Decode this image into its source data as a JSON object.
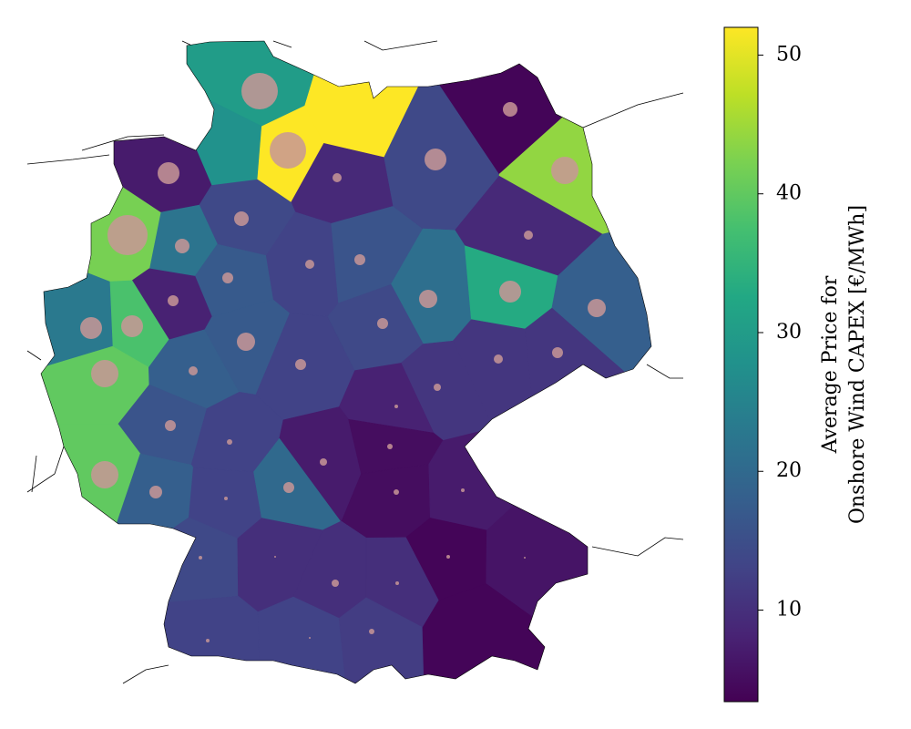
{
  "chart_data": {
    "type": "choropleth",
    "colorbar_label": [
      "Average Price for",
      "Onshore Wind CAPEX [€/MWh]"
    ],
    "cmap": "viridis",
    "clim": [
      3.4,
      52
    ],
    "cticks": [
      10,
      20,
      30,
      40,
      50
    ],
    "marker_color": "rgba(200,150,150,0.85)",
    "values": [
      30,
      28,
      52,
      52,
      9,
      7,
      14,
      22,
      42,
      17,
      8,
      38,
      23,
      40,
      18,
      17,
      13,
      13,
      16,
      14,
      4,
      44,
      9,
      21,
      33,
      18,
      14,
      11,
      11,
      11,
      8,
      16,
      13,
      7,
      5,
      40,
      18,
      13,
      20,
      5,
      7,
      4,
      6,
      14,
      10,
      10,
      10,
      13,
      13,
      12,
      4
    ],
    "sizes": [
      20,
      null,
      20,
      null,
      5,
      12,
      8,
      8,
      22,
      6,
      6,
      12,
      12,
      15,
      5,
      10,
      6,
      5,
      6,
      12,
      8,
      15,
      5,
      10,
      12,
      10,
      6,
      5,
      6,
      4,
      2,
      6,
      3,
      4,
      3,
      15,
      7,
      2,
      6,
      3,
      2,
      2,
      1,
      2,
      1,
      4,
      2,
      2,
      1,
      3,
      null
    ]
  }
}
